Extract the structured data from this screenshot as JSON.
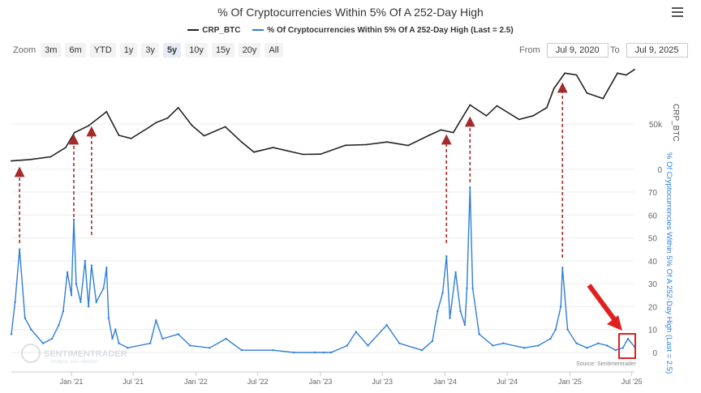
{
  "title": "% Of Cryptocurrencies Within 5% Of A 252-Day High",
  "legend": [
    {
      "label": "CRP_BTC",
      "color": "#222222"
    },
    {
      "label": "% Of Cryptocurrencies Within 5% Of A 252-Day High (Last = 2.5)",
      "color": "#2f7ed8"
    }
  ],
  "zoom": {
    "label": "Zoom",
    "options": [
      "3m",
      "6m",
      "YTD",
      "1y",
      "3y",
      "5y",
      "10y",
      "15y",
      "20y",
      "All"
    ],
    "active": "5y"
  },
  "date_range": {
    "from_label": "From",
    "from_value": "Jul 9, 2020",
    "to_label": "To",
    "to_value": "Jul 9, 2025"
  },
  "source": "Source: Sentimentrader",
  "watermark": "SENTIMENTRADER",
  "watermark_sub": "Analysis over emotion",
  "colors": {
    "price": "#222222",
    "pct": "#2f7ed8",
    "arrow": "#a52a2a",
    "highlight": "#e0201e"
  },
  "chart_data": [
    {
      "type": "line",
      "name": "CRP_BTC",
      "ylabel": "CRP_BTC",
      "y_ticks": [
        0,
        50000
      ],
      "y_tick_labels": [
        "0",
        "50k"
      ],
      "x": [
        "2020-07-09",
        "2020-09-01",
        "2020-11-01",
        "2020-12-15",
        "2021-01-10",
        "2021-02-20",
        "2021-04-14",
        "2021-05-20",
        "2021-06-25",
        "2021-08-15",
        "2021-09-06",
        "2021-10-10",
        "2021-11-10",
        "2021-12-20",
        "2022-01-25",
        "2022-03-28",
        "2022-05-15",
        "2022-06-20",
        "2022-08-15",
        "2022-11-10",
        "2023-01-01",
        "2023-03-15",
        "2023-05-15",
        "2023-07-15",
        "2023-09-15",
        "2023-11-15",
        "2023-12-20",
        "2024-01-25",
        "2024-03-14",
        "2024-05-01",
        "2024-06-01",
        "2024-08-05",
        "2024-09-15",
        "2024-10-25",
        "2024-11-15",
        "2024-12-17",
        "2025-01-20",
        "2025-02-20",
        "2025-04-08",
        "2025-05-20",
        "2025-06-15",
        "2025-07-09"
      ],
      "values": [
        9300,
        10800,
        13800,
        24000,
        40500,
        48000,
        63500,
        37500,
        34000,
        46000,
        51500,
        56500,
        68000,
        48500,
        37000,
        47000,
        30000,
        19000,
        24000,
        16500,
        16800,
        26500,
        27200,
        30200,
        26300,
        37500,
        43500,
        40500,
        71000,
        59000,
        70000,
        55000,
        59000,
        68000,
        89000,
        106000,
        104000,
        84000,
        78000,
        106000,
        104000,
        110000
      ]
    },
    {
      "type": "line",
      "name": "% Of Cryptocurrencies Within 5% Of A 252-Day High (Last = 2.5)",
      "ylabel": "% Of Cryptocurrencies Within 5% Of A 252-Day High (Last = 2.5)",
      "ylim": [
        0,
        80
      ],
      "y_ticks": [
        0,
        10,
        20,
        30,
        40,
        50,
        60,
        70
      ],
      "x_ticks": [
        "Jan '21",
        "Jul '21",
        "Jan '22",
        "Jul '22",
        "Jan '23",
        "Jul '23",
        "Jan '24",
        "Jul '24",
        "Jan '25",
        "Jul '25"
      ],
      "x": [
        "2020-07-09",
        "2020-07-20",
        "2020-08-02",
        "2020-08-18",
        "2020-09-05",
        "2020-10-10",
        "2020-11-05",
        "2020-11-25",
        "2020-12-08",
        "2020-12-20",
        "2021-01-01",
        "2021-01-08",
        "2021-01-15",
        "2021-01-28",
        "2021-02-10",
        "2021-02-20",
        "2021-03-01",
        "2021-03-15",
        "2021-04-05",
        "2021-04-14",
        "2021-04-20",
        "2021-05-01",
        "2021-05-10",
        "2021-05-20",
        "2021-06-15",
        "2021-08-20",
        "2021-09-06",
        "2021-09-25",
        "2021-11-10",
        "2021-12-15",
        "2022-02-10",
        "2022-03-30",
        "2022-05-15",
        "2022-08-15",
        "2022-10-15",
        "2022-12-15",
        "2023-01-10",
        "2023-02-01",
        "2023-03-20",
        "2023-04-15",
        "2023-05-20",
        "2023-07-14",
        "2023-08-20",
        "2023-10-25",
        "2023-11-25",
        "2023-12-10",
        "2023-12-25",
        "2024-01-05",
        "2024-01-15",
        "2024-02-01",
        "2024-02-15",
        "2024-02-28",
        "2024-03-05",
        "2024-03-14",
        "2024-03-22",
        "2024-04-10",
        "2024-05-20",
        "2024-06-20",
        "2024-08-20",
        "2024-09-30",
        "2024-11-05",
        "2024-11-20",
        "2024-12-05",
        "2024-12-10",
        "2024-12-25",
        "2025-01-20",
        "2025-02-20",
        "2025-03-25",
        "2025-04-20",
        "2025-05-15",
        "2025-06-05",
        "2025-06-20",
        "2025-07-09"
      ],
      "values": [
        8,
        22,
        45,
        15,
        10,
        4,
        6,
        12,
        18,
        35,
        25,
        58,
        30,
        22,
        40,
        20,
        38,
        22,
        28,
        37,
        15,
        6,
        10,
        4,
        2,
        4,
        14,
        6,
        8,
        3,
        2,
        6,
        1,
        1,
        0,
        0,
        0,
        0,
        3,
        9,
        3,
        12,
        4,
        1,
        5,
        18,
        26,
        42,
        15,
        35,
        18,
        12,
        28,
        72,
        28,
        8,
        3,
        4,
        2,
        3,
        6,
        10,
        20,
        37,
        10,
        4,
        2,
        4,
        3,
        1,
        2,
        6,
        2.5
      ]
    }
  ]
}
